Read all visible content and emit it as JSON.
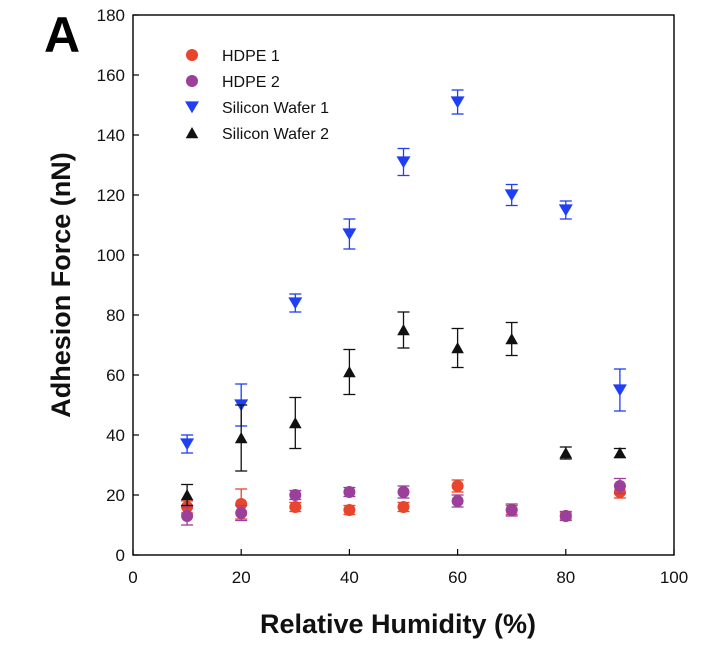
{
  "panel_label": "A",
  "colors": {
    "hdpe1": "#e8452c",
    "hdpe2": "#9b3f9b",
    "sw1": "#1f3ff5",
    "sw2": "#111111",
    "axis": "#000000"
  },
  "chart_data": {
    "type": "scatter",
    "title": "",
    "xlabel": "Relative Humidity (%)",
    "ylabel": "Adhesion Force (nN)",
    "xlim": [
      0,
      100
    ],
    "ylim": [
      0,
      180
    ],
    "xticks": [
      0,
      20,
      40,
      60,
      80,
      100
    ],
    "yticks": [
      0,
      20,
      40,
      60,
      80,
      100,
      120,
      140,
      160,
      180
    ],
    "legend_position": "top-left",
    "series": [
      {
        "name": "HDPE 1",
        "marker": "circle",
        "color_key": "hdpe1",
        "x": [
          10,
          20,
          30,
          40,
          50,
          60,
          70,
          80,
          90
        ],
        "y": [
          16,
          17,
          16,
          15,
          16,
          23,
          15,
          13,
          21
        ],
        "err": [
          2,
          5,
          1.5,
          1.5,
          1.5,
          2,
          1.5,
          1,
          2
        ]
      },
      {
        "name": "HDPE 2",
        "marker": "circle",
        "color_key": "hdpe2",
        "x": [
          10,
          20,
          30,
          40,
          50,
          60,
          70,
          80,
          90
        ],
        "y": [
          13,
          14,
          20,
          21,
          21,
          18,
          15,
          13,
          23
        ],
        "err": [
          3,
          2.5,
          1.5,
          1.5,
          2,
          2,
          2,
          1.5,
          2.5
        ]
      },
      {
        "name": "Silicon Wafer 1",
        "marker": "triangle-down",
        "color_key": "sw1",
        "x": [
          10,
          20,
          30,
          40,
          50,
          60,
          70,
          80,
          90
        ],
        "y": [
          37,
          50,
          84,
          107,
          131,
          151,
          120,
          115,
          55
        ],
        "err": [
          3,
          7,
          3,
          5,
          4.5,
          4,
          3.5,
          3,
          7
        ]
      },
      {
        "name": "Silicon Wafer 2",
        "marker": "triangle-up",
        "color_key": "sw2",
        "x": [
          10,
          20,
          30,
          40,
          50,
          60,
          70,
          80,
          90
        ],
        "y": [
          20,
          39,
          44,
          61,
          75,
          69,
          72,
          34,
          34
        ],
        "err": [
          3.5,
          11,
          8.5,
          7.5,
          6,
          6.5,
          5.5,
          2,
          1.5
        ]
      }
    ]
  }
}
